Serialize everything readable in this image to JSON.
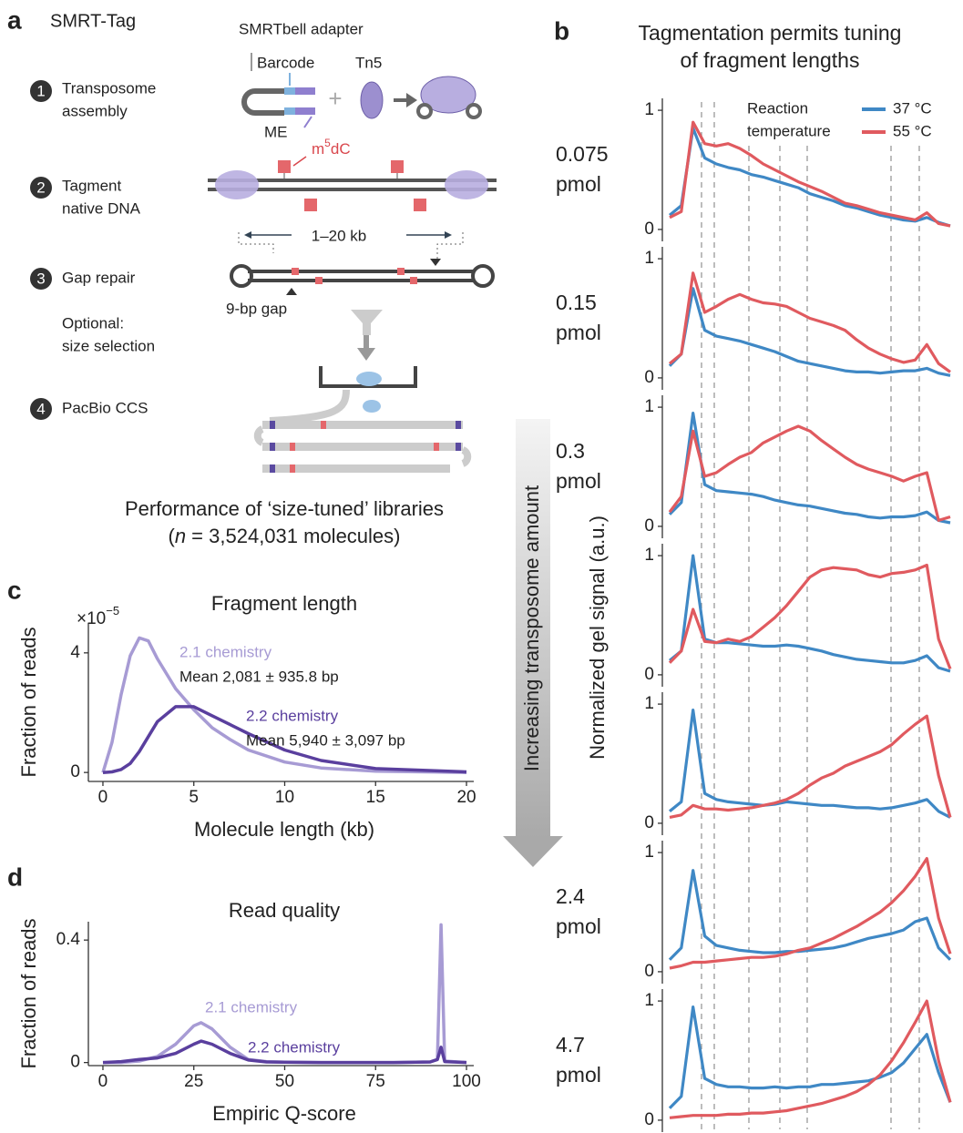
{
  "panel_a": {
    "label": "a",
    "title": "SMRT-Tag",
    "adapter_label": "SMRTbell adapter",
    "barcode_label": "Barcode",
    "tn5_label": "Tn5",
    "me_label": "ME",
    "methyl_label": {
      "base": "m",
      "superscript": "5",
      "tail": "dC"
    },
    "size_label": "1–20 kb",
    "gap_label": "9-bp gap",
    "steps": [
      {
        "number": "1",
        "lines": [
          "Transposome",
          "assembly"
        ]
      },
      {
        "number": "2",
        "lines": [
          "Tagment",
          "native DNA"
        ]
      },
      {
        "number": "3",
        "lines": [
          "Gap repair"
        ]
      },
      {
        "number": "4",
        "lines": [
          "PacBio CCS"
        ]
      }
    ],
    "optional_lines": [
      "Optional:",
      "size selection"
    ],
    "performance_title": "Performance of ‘size-tuned’ libraries",
    "performance_subtitle": {
      "open": "(",
      "n": "n",
      "rest": " = 3,524,031 molecules)"
    }
  },
  "arrow_label": "Increasing transposome amount",
  "chart_data": [
    {
      "type": "line-stack",
      "label": "b",
      "title_lines": [
        "Tagmentation permits tuning",
        "of fragment lengths"
      ],
      "legend_title_lines": [
        "Reaction",
        "temperature"
      ],
      "ylabel": "Normalized gel signal (a.u.)",
      "series": [
        {
          "name": "37 °C",
          "color": "#3f88c5"
        },
        {
          "name": "55 °C",
          "color": "#e05a5f"
        }
      ],
      "panels": [
        {
          "label_lines": [
            "0.075",
            "pmol"
          ],
          "ylim": [
            -0.1,
            1.1
          ],
          "yticks": [
            0,
            1
          ],
          "values": [
            [
              0.12,
              0.2,
              0.85,
              0.6,
              0.55,
              0.52,
              0.5,
              0.46,
              0.44,
              0.41,
              0.38,
              0.35,
              0.3,
              0.27,
              0.24,
              0.2,
              0.18,
              0.15,
              0.12,
              0.1,
              0.08,
              0.07,
              0.1,
              0.06,
              0.03
            ],
            [
              0.1,
              0.15,
              0.9,
              0.72,
              0.7,
              0.72,
              0.68,
              0.62,
              0.55,
              0.5,
              0.45,
              0.4,
              0.36,
              0.32,
              0.27,
              0.22,
              0.2,
              0.17,
              0.14,
              0.12,
              0.1,
              0.08,
              0.14,
              0.05,
              0.03
            ]
          ]
        },
        {
          "label_lines": [
            "0.15",
            "pmol"
          ],
          "ylim": [
            -0.1,
            1.1
          ],
          "yticks": [
            0,
            1
          ],
          "values": [
            [
              0.1,
              0.2,
              0.75,
              0.4,
              0.35,
              0.33,
              0.31,
              0.28,
              0.25,
              0.22,
              0.18,
              0.14,
              0.12,
              0.1,
              0.08,
              0.06,
              0.05,
              0.05,
              0.04,
              0.05,
              0.06,
              0.06,
              0.08,
              0.04,
              0.02
            ],
            [
              0.12,
              0.2,
              0.88,
              0.55,
              0.6,
              0.66,
              0.7,
              0.66,
              0.63,
              0.62,
              0.6,
              0.55,
              0.5,
              0.47,
              0.44,
              0.4,
              0.32,
              0.25,
              0.2,
              0.16,
              0.13,
              0.15,
              0.28,
              0.12,
              0.05
            ]
          ]
        },
        {
          "label_lines": [
            "0.3",
            "pmol"
          ],
          "ylim": [
            -0.1,
            1.1
          ],
          "yticks": [
            0,
            1
          ],
          "values": [
            [
              0.1,
              0.2,
              0.95,
              0.35,
              0.3,
              0.29,
              0.28,
              0.27,
              0.25,
              0.22,
              0.2,
              0.18,
              0.17,
              0.15,
              0.13,
              0.11,
              0.1,
              0.08,
              0.07,
              0.08,
              0.08,
              0.09,
              0.12,
              0.05,
              0.03
            ],
            [
              0.12,
              0.25,
              0.8,
              0.42,
              0.45,
              0.52,
              0.58,
              0.62,
              0.7,
              0.75,
              0.8,
              0.84,
              0.8,
              0.72,
              0.65,
              0.58,
              0.52,
              0.48,
              0.45,
              0.42,
              0.38,
              0.42,
              0.45,
              0.05,
              0.08
            ]
          ]
        },
        {
          "ylim": [
            -0.1,
            1.1
          ],
          "yticks": [
            0,
            1
          ],
          "values": [
            [
              0.12,
              0.2,
              1.0,
              0.3,
              0.27,
              0.27,
              0.26,
              0.25,
              0.24,
              0.24,
              0.25,
              0.24,
              0.22,
              0.2,
              0.17,
              0.15,
              0.13,
              0.12,
              0.11,
              0.1,
              0.1,
              0.12,
              0.16,
              0.06,
              0.03
            ],
            [
              0.1,
              0.2,
              0.55,
              0.28,
              0.27,
              0.3,
              0.28,
              0.32,
              0.4,
              0.48,
              0.58,
              0.7,
              0.82,
              0.88,
              0.9,
              0.89,
              0.88,
              0.84,
              0.82,
              0.85,
              0.86,
              0.88,
              0.92,
              0.3,
              0.05
            ]
          ]
        },
        {
          "ylim": [
            -0.1,
            1.1
          ],
          "yticks": [
            0,
            1
          ],
          "values": [
            [
              0.1,
              0.18,
              0.95,
              0.25,
              0.2,
              0.18,
              0.17,
              0.16,
              0.15,
              0.16,
              0.18,
              0.17,
              0.16,
              0.15,
              0.15,
              0.14,
              0.13,
              0.13,
              0.12,
              0.13,
              0.15,
              0.17,
              0.2,
              0.1,
              0.05
            ],
            [
              0.05,
              0.07,
              0.15,
              0.12,
              0.12,
              0.11,
              0.12,
              0.13,
              0.15,
              0.17,
              0.2,
              0.25,
              0.32,
              0.38,
              0.42,
              0.48,
              0.52,
              0.56,
              0.6,
              0.66,
              0.75,
              0.83,
              0.9,
              0.4,
              0.05
            ]
          ]
        },
        {
          "label_lines": [
            "2.4",
            "pmol"
          ],
          "ylim": [
            -0.1,
            1.1
          ],
          "yticks": [
            0,
            1
          ],
          "values": [
            [
              0.1,
              0.2,
              0.85,
              0.3,
              0.22,
              0.2,
              0.18,
              0.17,
              0.16,
              0.16,
              0.17,
              0.17,
              0.18,
              0.19,
              0.2,
              0.22,
              0.25,
              0.28,
              0.3,
              0.32,
              0.35,
              0.42,
              0.45,
              0.2,
              0.1
            ],
            [
              0.03,
              0.05,
              0.08,
              0.08,
              0.09,
              0.1,
              0.11,
              0.12,
              0.12,
              0.13,
              0.15,
              0.18,
              0.2,
              0.24,
              0.28,
              0.33,
              0.38,
              0.44,
              0.5,
              0.58,
              0.68,
              0.8,
              0.95,
              0.45,
              0.15
            ]
          ]
        },
        {
          "label_lines": [
            "4.7",
            "pmol"
          ],
          "ylim": [
            -0.1,
            1.1
          ],
          "yticks": [
            0,
            1
          ],
          "values": [
            [
              0.1,
              0.2,
              0.95,
              0.35,
              0.3,
              0.28,
              0.28,
              0.27,
              0.27,
              0.28,
              0.27,
              0.28,
              0.28,
              0.3,
              0.3,
              0.31,
              0.32,
              0.33,
              0.36,
              0.4,
              0.48,
              0.6,
              0.72,
              0.4,
              0.15
            ],
            [
              0.02,
              0.03,
              0.04,
              0.04,
              0.04,
              0.05,
              0.05,
              0.06,
              0.06,
              0.07,
              0.08,
              0.1,
              0.12,
              0.14,
              0.17,
              0.2,
              0.24,
              0.3,
              0.38,
              0.5,
              0.65,
              0.82,
              1.0,
              0.5,
              0.15
            ]
          ]
        }
      ]
    },
    {
      "type": "line",
      "label": "c",
      "title": "Fragment length",
      "multiplier": {
        "base": "×10",
        "exponent": "−5"
      },
      "xlabel": "Molecule length (kb)",
      "ylabel": "Fraction of reads",
      "xlim": [
        -0.8,
        20.4
      ],
      "ylim": [
        -0.3,
        5
      ],
      "xticks": [
        0,
        5,
        10,
        15,
        20
      ],
      "yticks": [
        0,
        4
      ],
      "x": [
        0,
        0.5,
        1,
        1.5,
        2,
        2.5,
        3,
        4,
        5,
        6,
        7,
        8,
        10,
        12,
        15,
        20
      ],
      "series": [
        {
          "name": "2.1 chemistry",
          "annotation": "Mean 2,081 ± 935.8 bp",
          "color": "#a79bd4",
          "values": [
            0,
            1.0,
            2.6,
            3.9,
            4.5,
            4.4,
            3.8,
            2.8,
            2.1,
            1.5,
            1.1,
            0.75,
            0.35,
            0.15,
            0.04,
            0
          ]
        },
        {
          "name": "2.2 chemistry",
          "annotation": "Mean 5,940 ± 3,097 bp",
          "color": "#5a3f9e",
          "values": [
            0,
            0.02,
            0.1,
            0.3,
            0.7,
            1.2,
            1.7,
            2.2,
            2.2,
            1.9,
            1.6,
            1.3,
            0.75,
            0.4,
            0.13,
            0.02
          ]
        }
      ]
    },
    {
      "type": "line",
      "label": "d",
      "title": "Read quality",
      "xlabel": "Empiric Q-score",
      "ylabel": "Fraction of reads",
      "xlim": [
        -4,
        102
      ],
      "ylim": [
        -0.01,
        0.46
      ],
      "xticks": [
        0,
        25,
        50,
        75,
        100
      ],
      "yticks": [
        0,
        0.4
      ],
      "x": [
        0,
        5,
        10,
        15,
        20,
        25,
        27,
        30,
        35,
        40,
        45,
        50,
        60,
        70,
        80,
        90,
        92,
        93,
        94,
        100
      ],
      "series": [
        {
          "name": "2.1 chemistry",
          "color": "#a79bd4",
          "values": [
            0,
            0,
            0.005,
            0.02,
            0.06,
            0.12,
            0.13,
            0.11,
            0.05,
            0.01,
            0.003,
            0.001,
            0,
            0,
            0,
            0.002,
            0.01,
            0.45,
            0.005,
            0
          ]
        },
        {
          "name": "2.2 chemistry",
          "color": "#5a3f9e",
          "values": [
            0,
            0.003,
            0.01,
            0.015,
            0.03,
            0.06,
            0.07,
            0.06,
            0.03,
            0.008,
            0.002,
            0.001,
            0,
            0,
            0,
            0.002,
            0.01,
            0.05,
            0.003,
            0
          ]
        }
      ]
    }
  ]
}
